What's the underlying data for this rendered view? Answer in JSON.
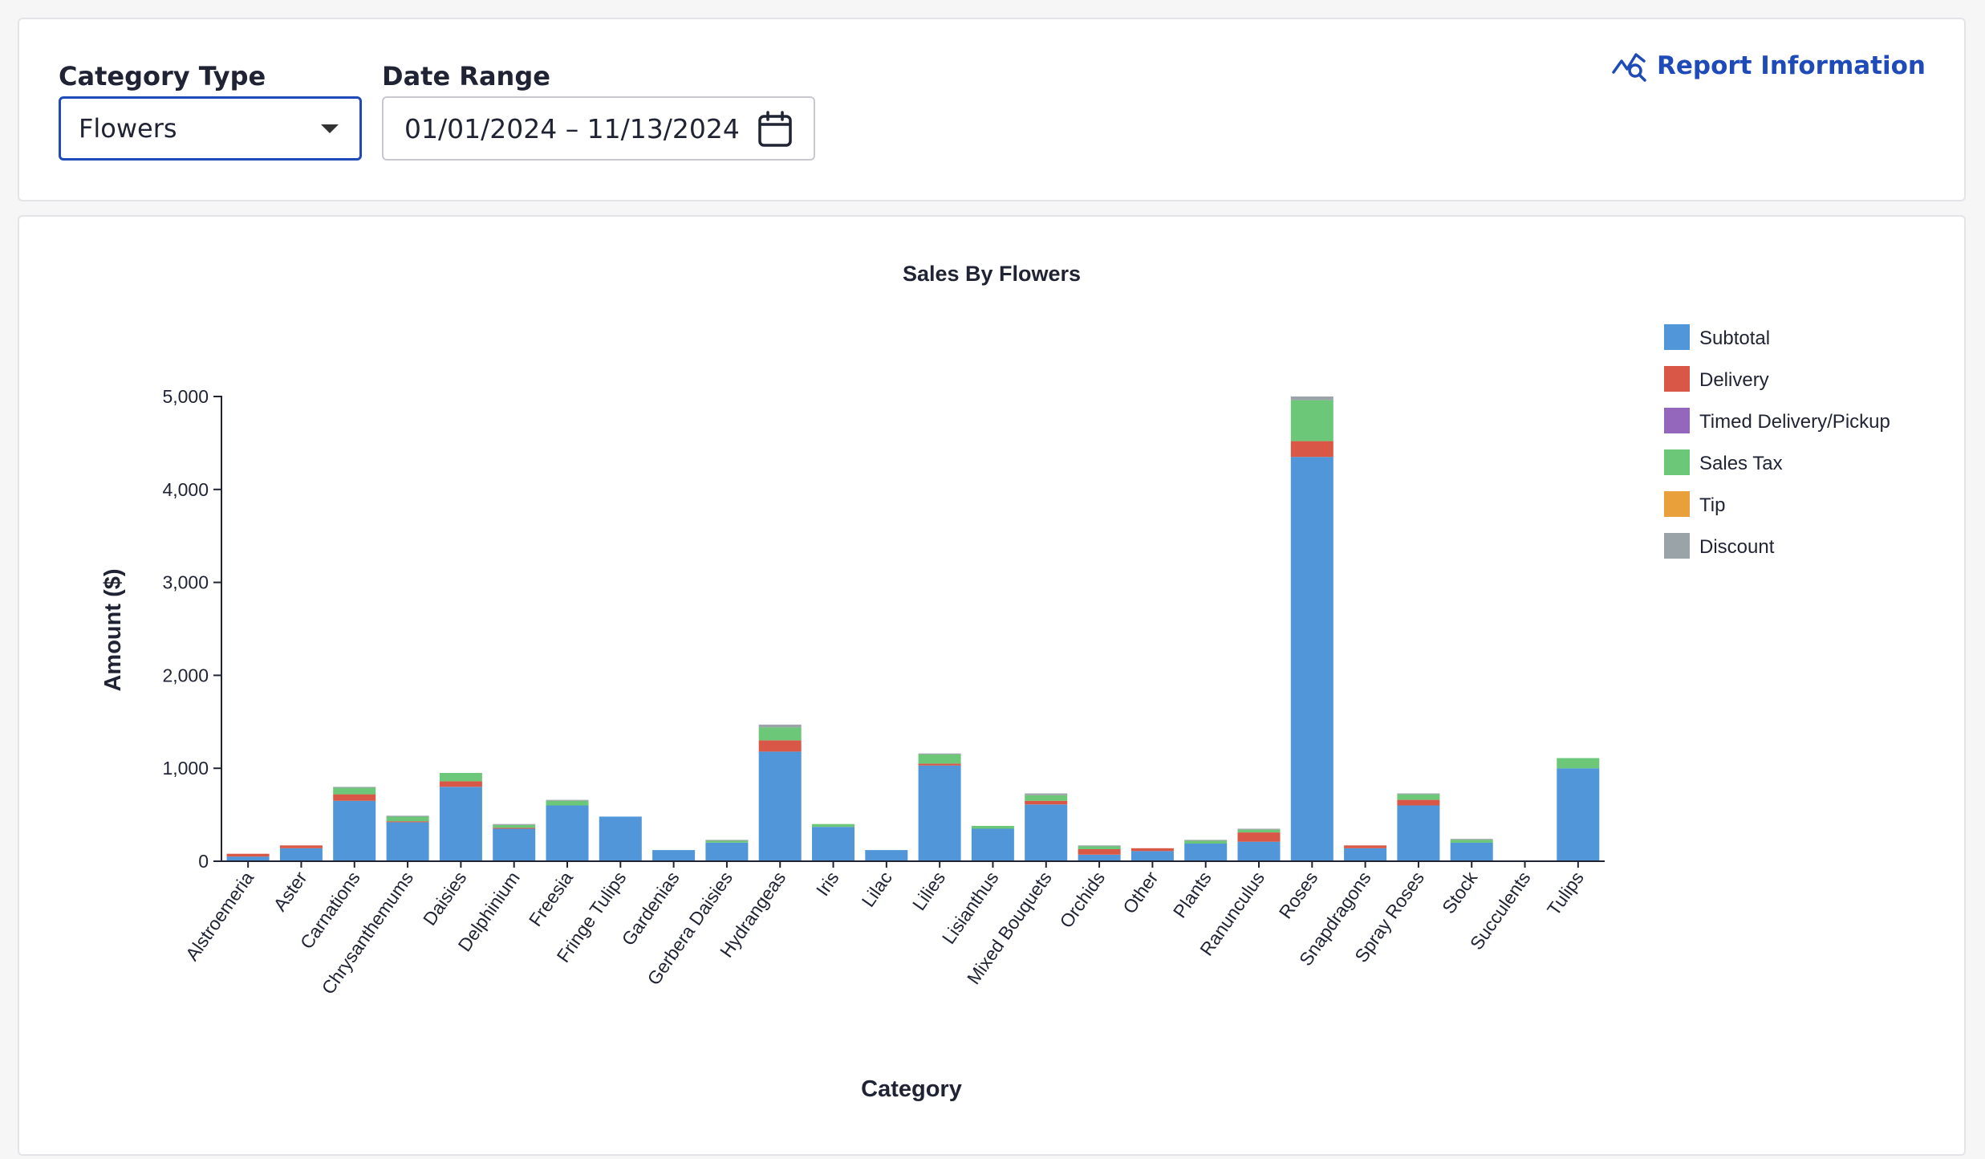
{
  "filters": {
    "category_label": "Category Type",
    "category_value": "Flowers",
    "date_label": "Date Range",
    "date_value": "01/01/2024 – 11/13/2024"
  },
  "report_link": {
    "label": "Report Information",
    "icon": "chart-search-icon"
  },
  "chart_data": {
    "type": "bar",
    "stacked": true,
    "title": "Sales By Flowers",
    "xlabel": "Category",
    "ylabel": "Amount ($)",
    "ylim": [
      0,
      5000
    ],
    "yticks": [
      "0",
      "1,000",
      "2,000",
      "3,000",
      "4,000",
      "5,000"
    ],
    "grid": false,
    "legend_position": "top-right",
    "categories": [
      "Alstroemeria",
      "Aster",
      "Carnations",
      "Chrysanthemums",
      "Daisies",
      "Delphinium",
      "Freesia",
      "Fringe Tulips",
      "Gardenias",
      "Gerbera Daisies",
      "Hydrangeas",
      "Iris",
      "Lilac",
      "Lilies",
      "Lisianthus",
      "Mixed Bouquets",
      "Orchids",
      "Other",
      "Plants",
      "Ranunculus",
      "Roses",
      "Snapdragons",
      "Spray Roses",
      "Stock",
      "Succulents",
      "Tulips"
    ],
    "series": [
      {
        "name": "Subtotal",
        "color": "#5096d8",
        "values": [
          50,
          140,
          650,
          420,
          800,
          350,
          600,
          480,
          120,
          200,
          1180,
          370,
          120,
          1030,
          350,
          610,
          70,
          110,
          190,
          210,
          4350,
          140,
          600,
          200,
          0,
          1000
        ]
      },
      {
        "name": "Delivery",
        "color": "#d85747",
        "values": [
          30,
          30,
          70,
          10,
          60,
          10,
          0,
          0,
          0,
          0,
          120,
          0,
          0,
          20,
          0,
          40,
          60,
          30,
          0,
          100,
          170,
          30,
          60,
          0,
          0,
          0
        ]
      },
      {
        "name": "Timed Delivery/Pickup",
        "color": "#9467bd",
        "values": [
          0,
          0,
          0,
          0,
          0,
          0,
          0,
          0,
          0,
          0,
          0,
          0,
          0,
          0,
          0,
          0,
          0,
          0,
          0,
          0,
          0,
          0,
          0,
          0,
          0,
          0
        ]
      },
      {
        "name": "Sales Tax",
        "color": "#6cc878",
        "values": [
          0,
          0,
          70,
          50,
          90,
          30,
          50,
          0,
          0,
          20,
          140,
          30,
          0,
          100,
          30,
          60,
          30,
          0,
          30,
          30,
          440,
          0,
          60,
          30,
          0,
          110
        ]
      },
      {
        "name": "Tip",
        "color": "#e9a03b",
        "values": [
          0,
          0,
          0,
          0,
          0,
          0,
          0,
          0,
          0,
          0,
          0,
          0,
          0,
          0,
          0,
          0,
          0,
          0,
          0,
          0,
          0,
          0,
          0,
          0,
          0,
          0
        ]
      },
      {
        "name": "Discount",
        "color": "#9aa3a8",
        "values": [
          0,
          0,
          10,
          10,
          0,
          10,
          10,
          0,
          0,
          10,
          30,
          0,
          0,
          10,
          0,
          20,
          10,
          0,
          10,
          10,
          40,
          0,
          10,
          10,
          0,
          0
        ]
      }
    ]
  }
}
